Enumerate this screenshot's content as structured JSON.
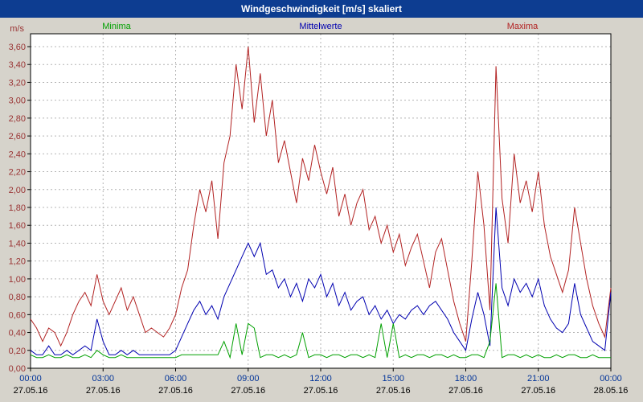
{
  "window": {
    "title": "Windgeschwindigkeit [m/s] skaliert"
  },
  "colors": {
    "titlebar_bg": "#0d3d91",
    "titlebar_text": "#ffffff",
    "plot_bg": "#ffffff",
    "grid": "#b4b4b4",
    "border": "#000000",
    "y_label_color": "#993333",
    "x_time_color": "#003399",
    "x_date_color": "#000000"
  },
  "chart_data": {
    "type": "line",
    "title": "Windgeschwindigkeit [m/s] skaliert",
    "unit_label": "m/s",
    "ylim": [
      0,
      3.6
    ],
    "ytick_step": 0.2,
    "decimal_format": "comma",
    "grid": "dashed",
    "x_range_hours": [
      0,
      24
    ],
    "x_tick_interval_hours": 3,
    "x_tick_labels": [
      "00:00",
      "03:00",
      "06:00",
      "09:00",
      "12:00",
      "15:00",
      "18:00",
      "21:00",
      "00:00"
    ],
    "x_date_labels": [
      "27.05.16",
      "27.05.16",
      "27.05.16",
      "27.05.16",
      "27.05.16",
      "27.05.16",
      "27.05.16",
      "27.05.16",
      "28.05.16"
    ],
    "sample_interval_minutes": 15,
    "series": [
      {
        "name": "Maxima",
        "color": "#b22222",
        "values": [
          0.55,
          0.45,
          0.3,
          0.45,
          0.4,
          0.25,
          0.4,
          0.6,
          0.75,
          0.85,
          0.7,
          1.05,
          0.75,
          0.6,
          0.75,
          0.9,
          0.65,
          0.8,
          0.6,
          0.4,
          0.45,
          0.4,
          0.35,
          0.45,
          0.6,
          0.9,
          1.1,
          1.6,
          2.0,
          1.75,
          2.1,
          1.45,
          2.3,
          2.6,
          3.4,
          2.9,
          3.6,
          2.75,
          3.3,
          2.6,
          3.0,
          2.3,
          2.55,
          2.2,
          1.85,
          2.35,
          2.1,
          2.5,
          2.2,
          1.95,
          2.25,
          1.7,
          1.95,
          1.6,
          1.85,
          2.0,
          1.55,
          1.7,
          1.4,
          1.6,
          1.3,
          1.5,
          1.15,
          1.35,
          1.5,
          1.2,
          0.9,
          1.3,
          1.45,
          1.1,
          0.75,
          0.5,
          0.3,
          1.2,
          2.2,
          1.6,
          0.65,
          3.38,
          1.9,
          1.4,
          2.4,
          1.85,
          2.1,
          1.75,
          2.2,
          1.6,
          1.25,
          1.05,
          0.85,
          1.1,
          1.8,
          1.4,
          1.0,
          0.7,
          0.5,
          0.35,
          0.9
        ]
      },
      {
        "name": "Mittelwerte",
        "color": "#0000b0",
        "values": [
          0.2,
          0.15,
          0.15,
          0.25,
          0.15,
          0.15,
          0.2,
          0.15,
          0.2,
          0.25,
          0.2,
          0.55,
          0.3,
          0.15,
          0.15,
          0.2,
          0.15,
          0.2,
          0.15,
          0.15,
          0.15,
          0.15,
          0.15,
          0.15,
          0.2,
          0.35,
          0.5,
          0.65,
          0.75,
          0.6,
          0.7,
          0.55,
          0.8,
          0.95,
          1.1,
          1.25,
          1.4,
          1.25,
          1.4,
          1.05,
          1.1,
          0.9,
          1.0,
          0.8,
          0.95,
          0.75,
          1.0,
          0.9,
          1.05,
          0.8,
          0.95,
          0.7,
          0.85,
          0.65,
          0.75,
          0.8,
          0.6,
          0.7,
          0.55,
          0.65,
          0.5,
          0.6,
          0.55,
          0.65,
          0.7,
          0.6,
          0.7,
          0.75,
          0.65,
          0.55,
          0.4,
          0.3,
          0.2,
          0.55,
          0.85,
          0.6,
          0.25,
          1.8,
          0.9,
          0.7,
          1.0,
          0.85,
          0.95,
          0.8,
          1.0,
          0.7,
          0.55,
          0.45,
          0.4,
          0.5,
          0.95,
          0.6,
          0.45,
          0.3,
          0.25,
          0.2,
          0.85
        ]
      },
      {
        "name": "Minima",
        "color": "#00a000",
        "values": [
          0.15,
          0.12,
          0.12,
          0.15,
          0.12,
          0.12,
          0.15,
          0.12,
          0.12,
          0.15,
          0.12,
          0.2,
          0.15,
          0.12,
          0.12,
          0.15,
          0.12,
          0.12,
          0.12,
          0.12,
          0.12,
          0.12,
          0.12,
          0.12,
          0.12,
          0.15,
          0.15,
          0.15,
          0.15,
          0.15,
          0.15,
          0.15,
          0.3,
          0.12,
          0.5,
          0.15,
          0.5,
          0.45,
          0.12,
          0.15,
          0.15,
          0.12,
          0.15,
          0.12,
          0.15,
          0.4,
          0.12,
          0.15,
          0.15,
          0.12,
          0.15,
          0.15,
          0.12,
          0.15,
          0.15,
          0.12,
          0.15,
          0.12,
          0.5,
          0.12,
          0.5,
          0.12,
          0.15,
          0.12,
          0.15,
          0.15,
          0.12,
          0.15,
          0.15,
          0.12,
          0.15,
          0.12,
          0.12,
          0.15,
          0.15,
          0.12,
          0.3,
          0.95,
          0.12,
          0.15,
          0.15,
          0.12,
          0.15,
          0.12,
          0.15,
          0.12,
          0.12,
          0.15,
          0.12,
          0.15,
          0.15,
          0.12,
          0.12,
          0.15,
          0.12,
          0.12,
          0.12
        ]
      }
    ]
  }
}
